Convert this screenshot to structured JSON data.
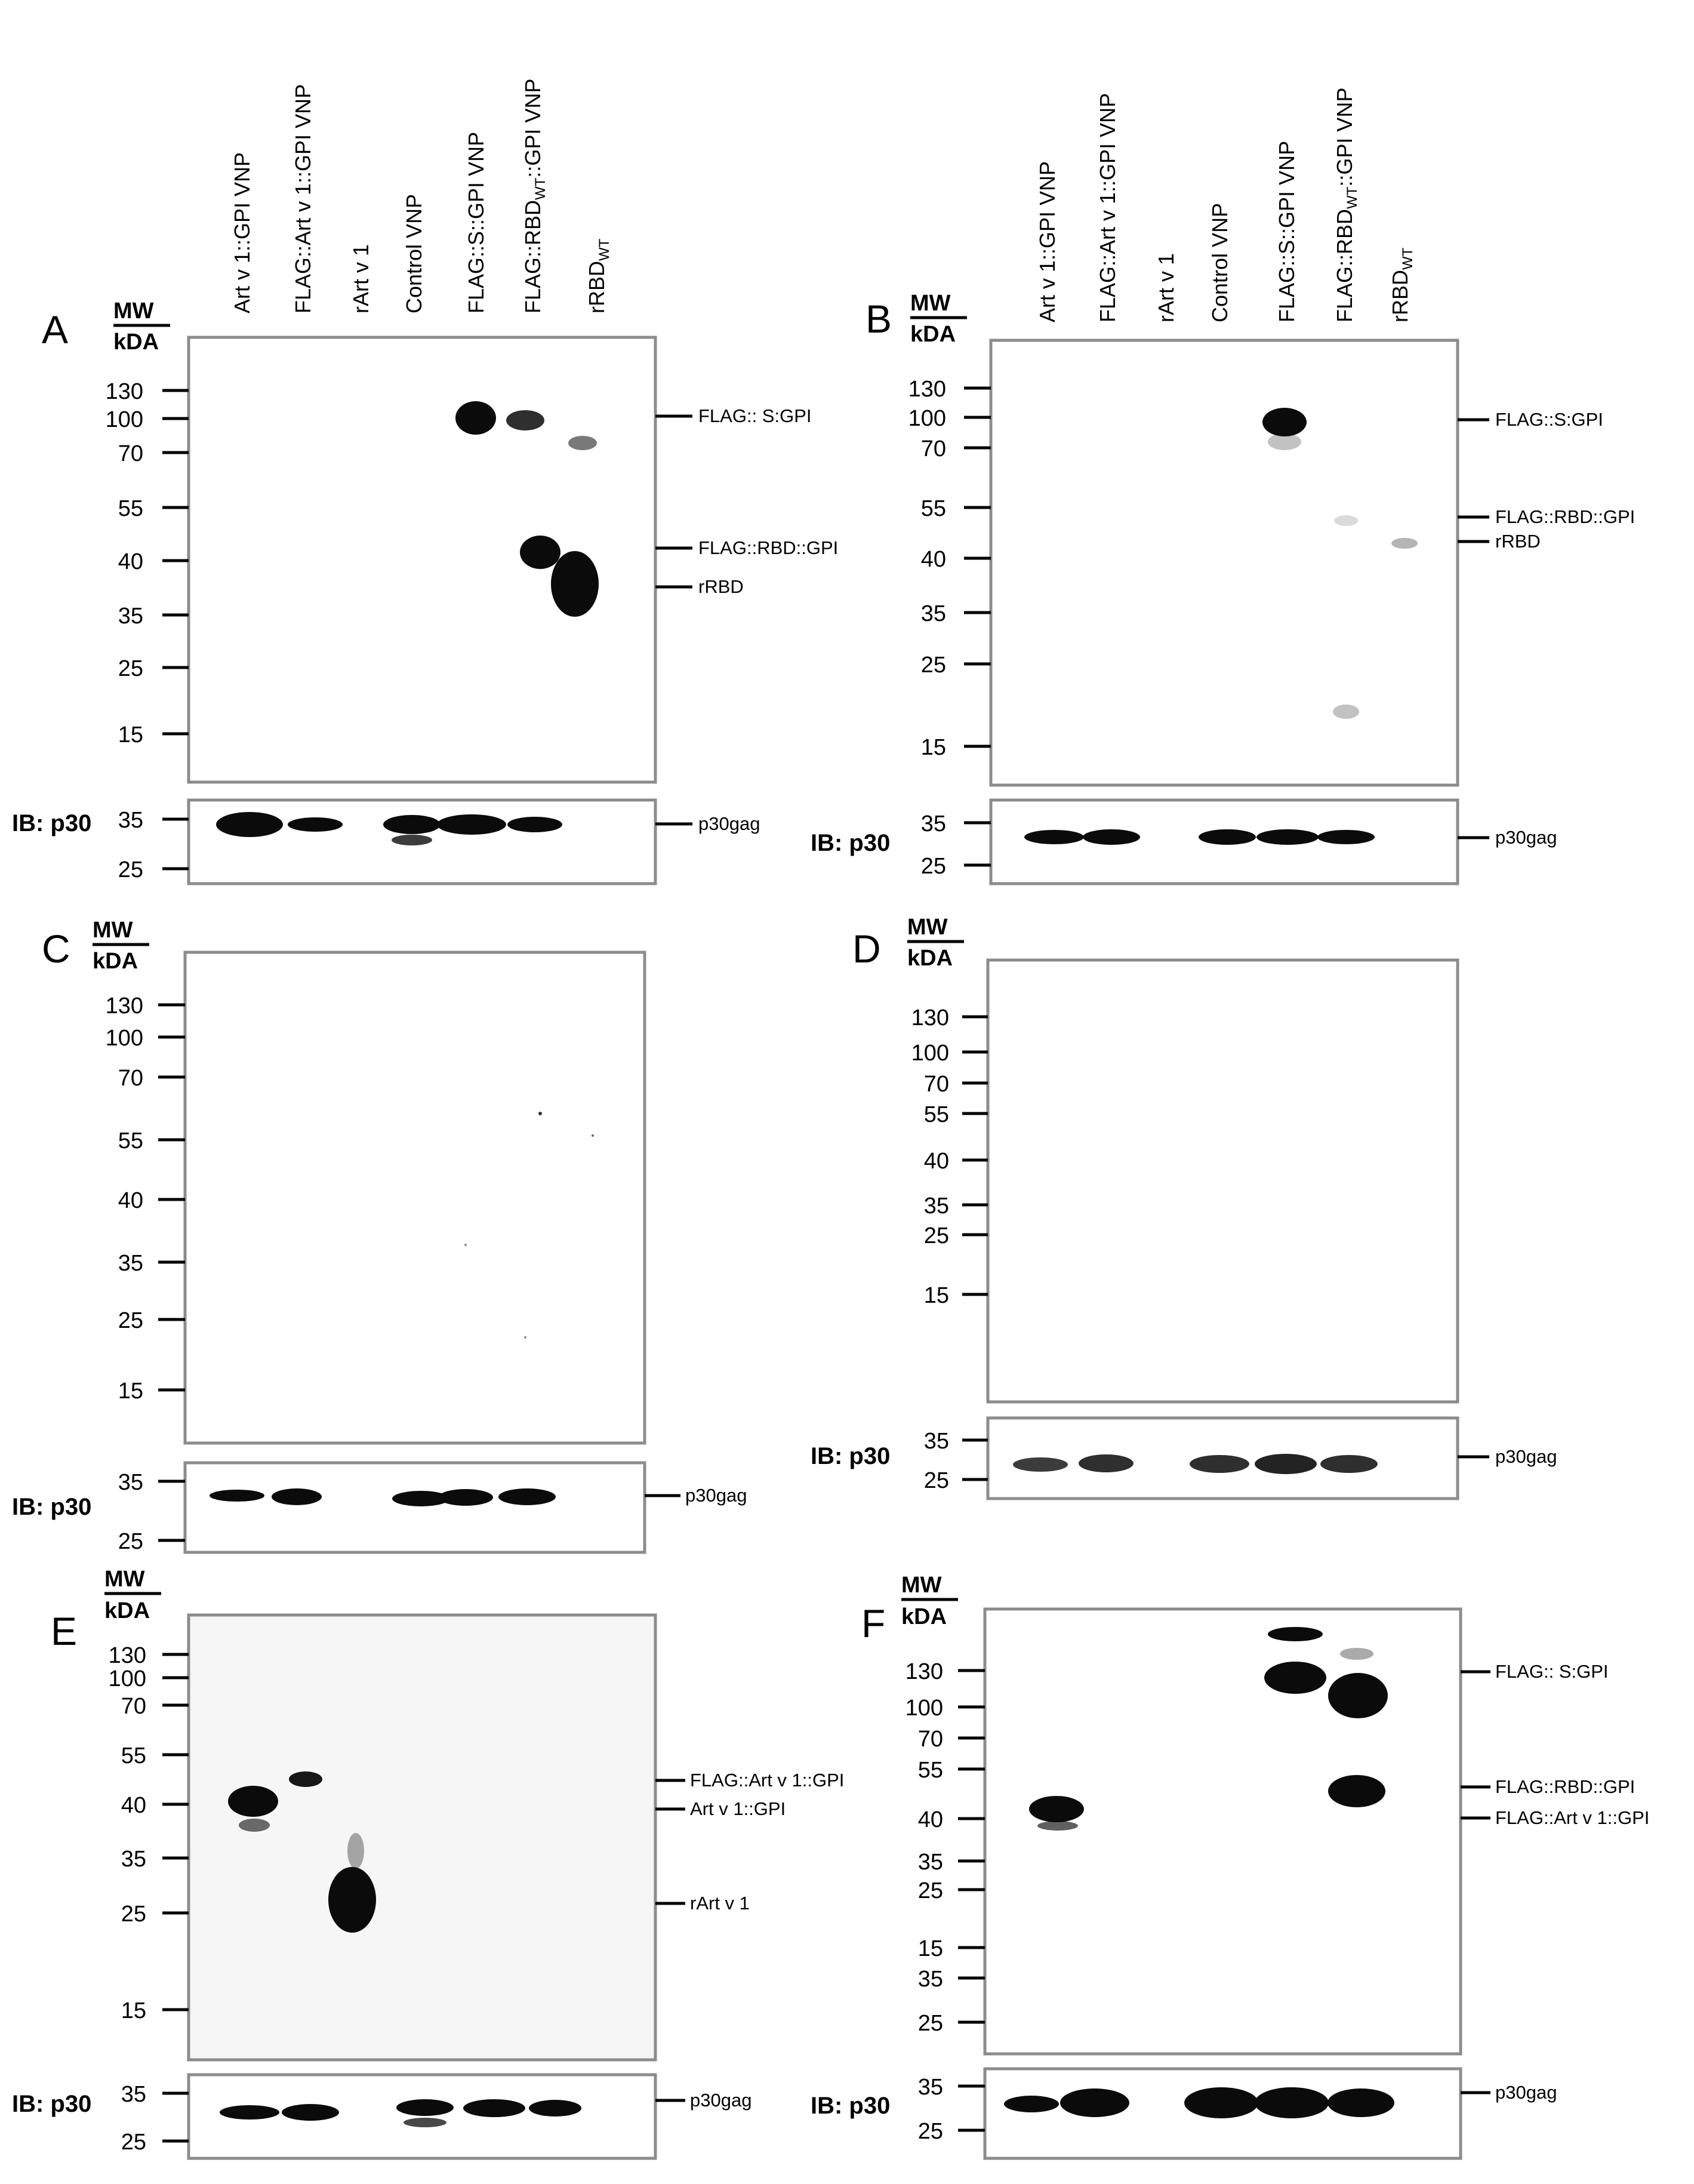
{
  "lane_labels": [
    {
      "text": "Art v 1::GPI VNP",
      "sub": ""
    },
    {
      "text": "FLAG::Art v 1::GPI VNP",
      "sub": ""
    },
    {
      "text": "rArt v 1",
      "sub": ""
    },
    {
      "text": "Control VNP",
      "sub": ""
    },
    {
      "text": "FLAG::S::GPI VNP",
      "sub": ""
    },
    {
      "text": "FLAG::RBD",
      "sub": "WT",
      "tail": "::GPI VNP"
    },
    {
      "text": "rRBD",
      "sub": "WT",
      "tail": ""
    }
  ],
  "mw_header": {
    "line1": "MW",
    "line2": "kDA"
  },
  "ib_label": "IB: p30",
  "loading_ticks": [
    "35",
    "25"
  ],
  "loading_annotation": "p30gag",
  "panels": [
    {
      "id": "A",
      "ticks": [
        "130",
        "100",
        "70",
        "55",
        "40",
        "35",
        "25",
        "15"
      ],
      "annotations": [
        "FLAG:: S:GPI",
        "FLAG::RBD::GPI",
        "rRBD"
      ],
      "bands": [
        {
          "lane": 5,
          "kda": 100,
          "intensity": 1.0
        },
        {
          "lane": 6,
          "kda": 100,
          "intensity": 0.85
        },
        {
          "lane": 7,
          "kda": 75,
          "intensity": 0.55
        },
        {
          "lane": 6,
          "kda": 42,
          "intensity": 1.0
        },
        {
          "lane": 7,
          "kda": 38,
          "intensity": 1.0
        }
      ],
      "loading": [
        {
          "lane": 1,
          "intensity": 1.0
        },
        {
          "lane": 2,
          "intensity": 0.95
        },
        {
          "lane": 4,
          "intensity": 1.0
        },
        {
          "lane": 5,
          "intensity": 1.0
        },
        {
          "lane": 6,
          "intensity": 0.95
        }
      ]
    },
    {
      "id": "B",
      "ticks": [
        "130",
        "100",
        "70",
        "55",
        "40",
        "35",
        "25",
        "15"
      ],
      "annotations": [
        "FLAG::S:GPI",
        "FLAG::RBD::GPI",
        "rRBD"
      ],
      "bands": [
        {
          "lane": 5,
          "kda": 100,
          "intensity": 1.0
        },
        {
          "lane": 6,
          "kda": 50,
          "intensity": 0.2
        },
        {
          "lane": 7,
          "kda": 42,
          "intensity": 0.35
        },
        {
          "lane": 6,
          "kda": 18,
          "intensity": 0.25
        }
      ],
      "loading": [
        {
          "lane": 1,
          "intensity": 1.0
        },
        {
          "lane": 2,
          "intensity": 1.0
        },
        {
          "lane": 4,
          "intensity": 1.0
        },
        {
          "lane": 5,
          "intensity": 1.0
        },
        {
          "lane": 6,
          "intensity": 1.0
        }
      ]
    },
    {
      "id": "C",
      "ticks": [
        "130",
        "100",
        "70",
        "55",
        "40",
        "35",
        "25",
        "15"
      ],
      "annotations": [],
      "bands": [],
      "loading": [
        {
          "lane": 1,
          "intensity": 0.9
        },
        {
          "lane": 2,
          "intensity": 1.0
        },
        {
          "lane": 4,
          "intensity": 1.0
        },
        {
          "lane": 5,
          "intensity": 1.0
        },
        {
          "lane": 6,
          "intensity": 1.0
        }
      ]
    },
    {
      "id": "D",
      "ticks": [
        "130",
        "100",
        "70",
        "55",
        "40",
        "35",
        "25",
        "15"
      ],
      "annotations": [],
      "bands": [],
      "loading": [
        {
          "lane": 1,
          "intensity": 0.8
        },
        {
          "lane": 2,
          "intensity": 0.85
        },
        {
          "lane": 4,
          "intensity": 0.85
        },
        {
          "lane": 5,
          "intensity": 0.9
        },
        {
          "lane": 6,
          "intensity": 0.85
        }
      ]
    },
    {
      "id": "E",
      "ticks": [
        "130",
        "100",
        "70",
        "55",
        "40",
        "35",
        "25",
        "15"
      ],
      "annotations": [
        "FLAG::Art v 1::GPI",
        "Art v 1::GPI",
        "rArt v 1"
      ],
      "bands": [
        {
          "lane": 1,
          "kda": 41,
          "intensity": 1.0
        },
        {
          "lane": 1,
          "kda": 37,
          "intensity": 0.6
        },
        {
          "lane": 2,
          "kda": 46,
          "intensity": 0.95
        },
        {
          "lane": 3,
          "kda": 25,
          "intensity": 1.0
        }
      ],
      "loading": [
        {
          "lane": 1,
          "intensity": 1.0
        },
        {
          "lane": 2,
          "intensity": 1.0
        },
        {
          "lane": 4,
          "intensity": 1.0
        },
        {
          "lane": 5,
          "intensity": 1.0
        },
        {
          "lane": 6,
          "intensity": 1.0
        }
      ]
    },
    {
      "id": "F",
      "ticks": [
        "130",
        "100",
        "70",
        "55",
        "40",
        "35",
        "25",
        "15",
        "35",
        "25"
      ],
      "annotations": [
        "FLAG:: S:GPI",
        "FLAG::RBD::GPI",
        "FLAG::Art v 1::GPI"
      ],
      "bands": [
        {
          "lane": 2,
          "kda": 44,
          "intensity": 1.0
        },
        {
          "lane": 5,
          "kda": 130,
          "intensity": 1.0
        },
        {
          "lane": 5,
          "kda": 160,
          "intensity": 0.9
        },
        {
          "lane": 6,
          "kda": 115,
          "intensity": 1.0
        },
        {
          "lane": 6,
          "kda": 52,
          "intensity": 1.0
        }
      ],
      "loading": [
        {
          "lane": 1,
          "intensity": 0.9
        },
        {
          "lane": 2,
          "intensity": 1.0
        },
        {
          "lane": 4,
          "intensity": 1.0
        },
        {
          "lane": 5,
          "intensity": 1.0
        },
        {
          "lane": 6,
          "intensity": 1.0
        }
      ]
    }
  ],
  "colors": {
    "band": "#0b0b0b",
    "frame": "#8c8c8c",
    "background": "#ffffff"
  }
}
